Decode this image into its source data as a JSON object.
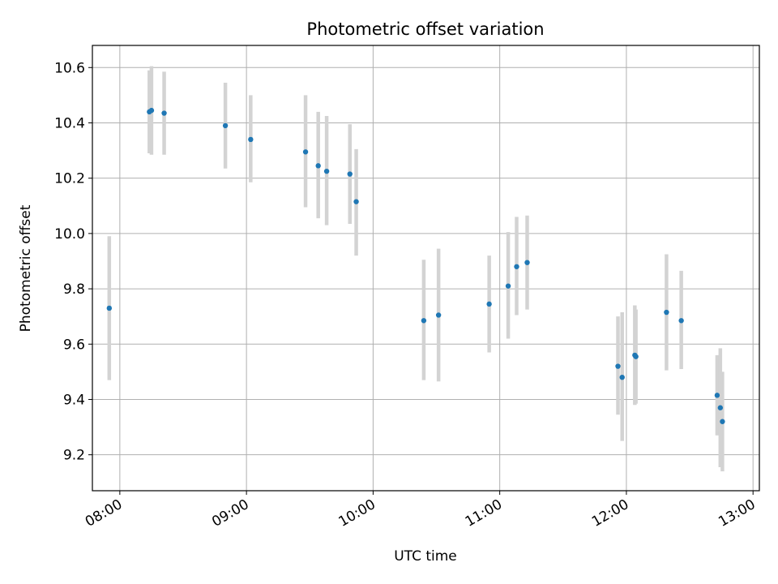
{
  "chart_data": {
    "type": "scatter",
    "title": "Photometric offset variation",
    "xlabel": "UTC time",
    "ylabel": "Photometric offset",
    "xlim": [
      "07:47",
      "13:03"
    ],
    "ylim": [
      9.07,
      10.68
    ],
    "xticks": [
      "08:00",
      "09:00",
      "10:00",
      "11:00",
      "12:00",
      "13:00"
    ],
    "yticks": [
      9.2,
      9.4,
      9.6,
      9.8,
      10.0,
      10.2,
      10.4,
      10.6
    ],
    "grid": true,
    "colors": {
      "point": "#1f77b4",
      "errorbar": "#d3d3d3"
    },
    "series": [
      {
        "points": [
          {
            "x": "07:55",
            "y": 9.73,
            "ylo": 9.47,
            "yhi": 9.99
          },
          {
            "x": "08:14",
            "y": 10.44,
            "ylo": 10.29,
            "yhi": 10.59
          },
          {
            "x": "08:15",
            "y": 10.445,
            "ylo": 10.285,
            "yhi": 10.605
          },
          {
            "x": "08:21",
            "y": 10.435,
            "ylo": 10.285,
            "yhi": 10.585
          },
          {
            "x": "08:50",
            "y": 10.39,
            "ylo": 10.235,
            "yhi": 10.545
          },
          {
            "x": "09:02",
            "y": 10.34,
            "ylo": 10.185,
            "yhi": 10.5
          },
          {
            "x": "09:28",
            "y": 10.295,
            "ylo": 10.095,
            "yhi": 10.5
          },
          {
            "x": "09:34",
            "y": 10.245,
            "ylo": 10.055,
            "yhi": 10.44
          },
          {
            "x": "09:38",
            "y": 10.225,
            "ylo": 10.03,
            "yhi": 10.425
          },
          {
            "x": "09:49",
            "y": 10.215,
            "ylo": 10.035,
            "yhi": 10.395
          },
          {
            "x": "09:52",
            "y": 10.115,
            "ylo": 9.92,
            "yhi": 10.305
          },
          {
            "x": "10:24",
            "y": 9.685,
            "ylo": 9.47,
            "yhi": 9.905
          },
          {
            "x": "10:31",
            "y": 9.705,
            "ylo": 9.465,
            "yhi": 9.945
          },
          {
            "x": "10:55",
            "y": 9.745,
            "ylo": 9.57,
            "yhi": 9.92
          },
          {
            "x": "11:04",
            "y": 9.81,
            "ylo": 9.62,
            "yhi": 10.005
          },
          {
            "x": "11:08",
            "y": 9.88,
            "ylo": 9.705,
            "yhi": 10.06
          },
          {
            "x": "11:13",
            "y": 9.895,
            "ylo": 9.725,
            "yhi": 10.065
          },
          {
            "x": "11:56",
            "y": 9.52,
            "ylo": 9.345,
            "yhi": 9.7
          },
          {
            "x": "11:58",
            "y": 9.48,
            "ylo": 9.25,
            "yhi": 9.715
          },
          {
            "x": "12:04",
            "y": 9.56,
            "ylo": 9.38,
            "yhi": 9.74
          },
          {
            "x": "12:04.5",
            "y": 9.555,
            "ylo": 9.385,
            "yhi": 9.725
          },
          {
            "x": "12:19",
            "y": 9.715,
            "ylo": 9.505,
            "yhi": 9.925
          },
          {
            "x": "12:26",
            "y": 9.685,
            "ylo": 9.51,
            "yhi": 9.865
          },
          {
            "x": "12:43",
            "y": 9.415,
            "ylo": 9.27,
            "yhi": 9.56
          },
          {
            "x": "12:44.5",
            "y": 9.37,
            "ylo": 9.155,
            "yhi": 9.585
          },
          {
            "x": "12:45.5",
            "y": 9.32,
            "ylo": 9.14,
            "yhi": 9.5
          }
        ]
      }
    ]
  }
}
